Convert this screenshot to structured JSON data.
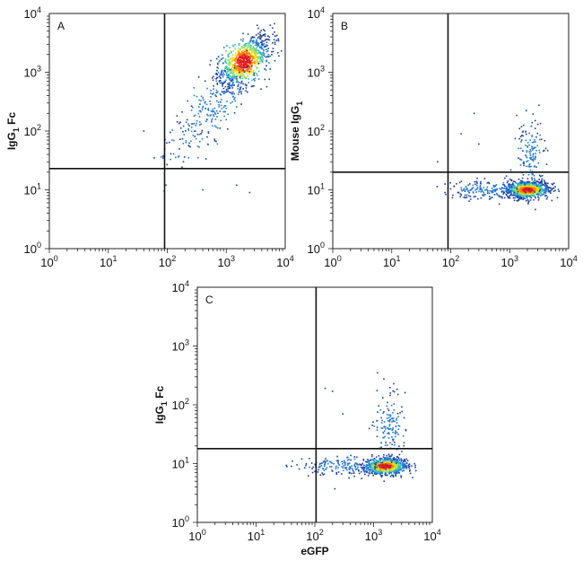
{
  "chart_data": [
    {
      "type": "scatter",
      "panel_label": "A",
      "xlabel": "",
      "ylabel": "IgG1 Fc",
      "ylabel_parts": {
        "main": "IgG",
        "sub": "1",
        "suffix": " Fc"
      },
      "x_scale": "log",
      "y_scale": "log",
      "xlim": [
        1,
        10000
      ],
      "ylim": [
        1,
        10000
      ],
      "x_ticks": [
        "10^0",
        "10^1",
        "10^2",
        "10^3",
        "10^4"
      ],
      "y_ticks": [
        "10^0",
        "10^1",
        "10^2",
        "10^3",
        "10^4"
      ],
      "gate": {
        "x": 90,
        "y": 23
      },
      "clusters": [
        {
          "cx": 2000,
          "cy": 1500,
          "sx": 0.22,
          "sy": 0.22,
          "rho": 0.6,
          "n": 900,
          "density": "high"
        },
        {
          "cx": 600,
          "cy": 250,
          "sx": 0.35,
          "sy": 0.35,
          "rho": 0.7,
          "n": 220,
          "density": "low"
        },
        {
          "cx": 200,
          "cy": 60,
          "sx": 0.3,
          "sy": 0.25,
          "rho": 0.5,
          "n": 40,
          "density": "low"
        }
      ],
      "outliers": [
        [
          40,
          100
        ],
        [
          60,
          35
        ],
        [
          95,
          12
        ],
        [
          400,
          10
        ],
        [
          1500,
          12
        ],
        [
          2500,
          9
        ]
      ]
    },
    {
      "type": "scatter",
      "panel_label": "B",
      "xlabel": "",
      "ylabel": "Mouse IgG1",
      "ylabel_parts": {
        "main": "Mouse IgG",
        "sub": "1",
        "suffix": ""
      },
      "x_scale": "log",
      "y_scale": "log",
      "xlim": [
        1,
        10000
      ],
      "ylim": [
        1,
        10000
      ],
      "x_ticks": [
        "10^0",
        "10^1",
        "10^2",
        "10^3",
        "10^4"
      ],
      "y_ticks": [
        "10^0",
        "10^1",
        "10^2",
        "10^3",
        "10^4"
      ],
      "gate": {
        "x": 90,
        "y": 20
      },
      "clusters": [
        {
          "cx": 2000,
          "cy": 10,
          "sx": 0.18,
          "sy": 0.07,
          "rho": 0.1,
          "n": 800,
          "density": "high"
        },
        {
          "cx": 400,
          "cy": 10,
          "sx": 0.35,
          "sy": 0.08,
          "rho": 0.0,
          "n": 180,
          "density": "low"
        },
        {
          "cx": 2300,
          "cy": 40,
          "sx": 0.12,
          "sy": 0.3,
          "rho": 0.0,
          "n": 140,
          "density": "low"
        }
      ],
      "outliers": [
        [
          250,
          200
        ],
        [
          150,
          90
        ],
        [
          60,
          30
        ],
        [
          80,
          9
        ],
        [
          300,
          60
        ],
        [
          3000,
          130
        ]
      ]
    },
    {
      "type": "scatter",
      "panel_label": "C",
      "xlabel": "eGFP",
      "ylabel": "IgG1 Fc",
      "ylabel_parts": {
        "main": "IgG",
        "sub": "1",
        "suffix": " Fc"
      },
      "x_scale": "log",
      "y_scale": "log",
      "xlim": [
        1,
        10000
      ],
      "ylim": [
        1,
        10000
      ],
      "x_ticks": [
        "10^0",
        "10^1",
        "10^2",
        "10^3",
        "10^4"
      ],
      "y_ticks": [
        "10^0",
        "10^1",
        "10^2",
        "10^3",
        "10^4"
      ],
      "gate": {
        "x": 105,
        "y": 18
      },
      "clusters": [
        {
          "cx": 1600,
          "cy": 9,
          "sx": 0.18,
          "sy": 0.07,
          "rho": 0.1,
          "n": 800,
          "density": "high"
        },
        {
          "cx": 350,
          "cy": 9,
          "sx": 0.35,
          "sy": 0.08,
          "rho": 0.0,
          "n": 170,
          "density": "low"
        },
        {
          "cx": 1800,
          "cy": 40,
          "sx": 0.14,
          "sy": 0.3,
          "rho": 0.0,
          "n": 140,
          "density": "low"
        }
      ],
      "outliers": [
        [
          150,
          190
        ],
        [
          200,
          170
        ],
        [
          60,
          12
        ],
        [
          40,
          9
        ],
        [
          300,
          70
        ],
        [
          2600,
          150
        ]
      ]
    }
  ]
}
